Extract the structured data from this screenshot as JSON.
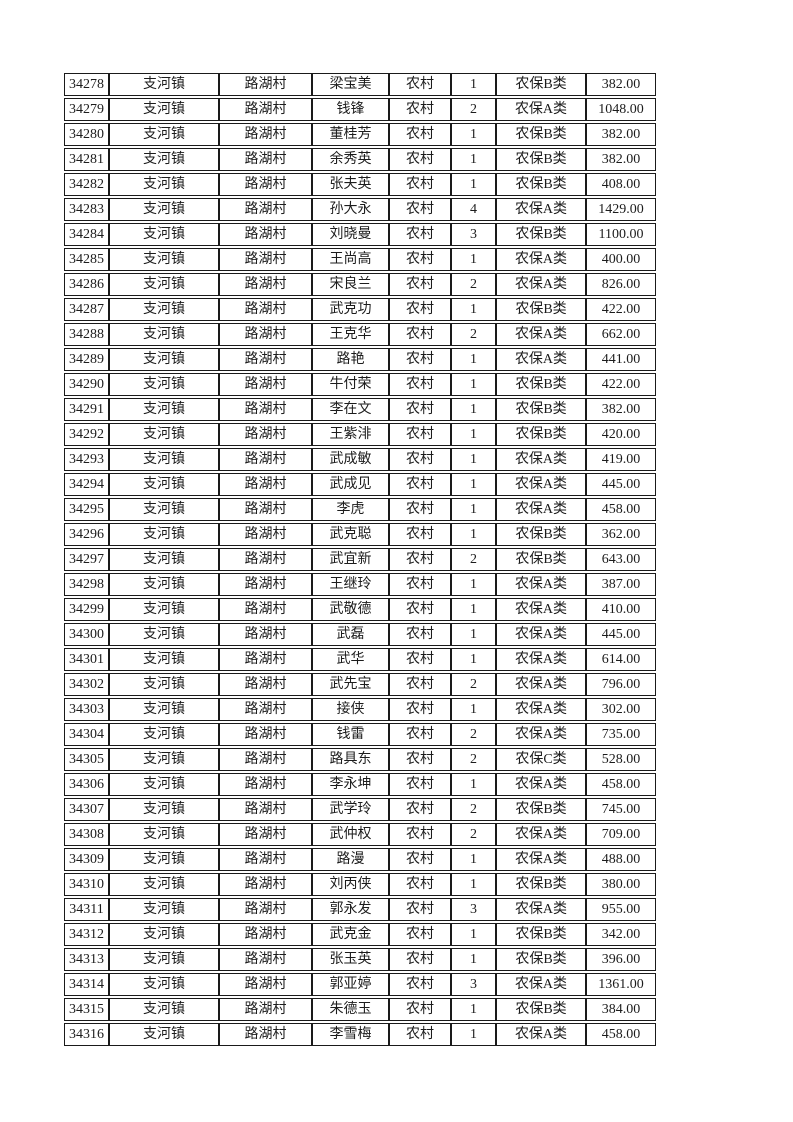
{
  "page": {
    "background": "#ffffff",
    "border_color": "#1a1a1a",
    "text_color": "#1c1c1c"
  },
  "table": {
    "columns": [
      "id",
      "town",
      "village",
      "name",
      "residence",
      "count",
      "insurance_type",
      "amount"
    ],
    "rows": [
      [
        "34278",
        "支河镇",
        "路湖村",
        "梁宝美",
        "农村",
        "1",
        "农保B类",
        "382.00"
      ],
      [
        "34279",
        "支河镇",
        "路湖村",
        "钱锋",
        "农村",
        "2",
        "农保A类",
        "1048.00"
      ],
      [
        "34280",
        "支河镇",
        "路湖村",
        "董桂芳",
        "农村",
        "1",
        "农保B类",
        "382.00"
      ],
      [
        "34281",
        "支河镇",
        "路湖村",
        "余秀英",
        "农村",
        "1",
        "农保B类",
        "382.00"
      ],
      [
        "34282",
        "支河镇",
        "路湖村",
        "张夫英",
        "农村",
        "1",
        "农保B类",
        "408.00"
      ],
      [
        "34283",
        "支河镇",
        "路湖村",
        "孙大永",
        "农村",
        "4",
        "农保A类",
        "1429.00"
      ],
      [
        "34284",
        "支河镇",
        "路湖村",
        "刘晓曼",
        "农村",
        "3",
        "农保B类",
        "1100.00"
      ],
      [
        "34285",
        "支河镇",
        "路湖村",
        "王尚高",
        "农村",
        "1",
        "农保A类",
        "400.00"
      ],
      [
        "34286",
        "支河镇",
        "路湖村",
        "宋良兰",
        "农村",
        "2",
        "农保A类",
        "826.00"
      ],
      [
        "34287",
        "支河镇",
        "路湖村",
        "武克功",
        "农村",
        "1",
        "农保B类",
        "422.00"
      ],
      [
        "34288",
        "支河镇",
        "路湖村",
        "王克华",
        "农村",
        "2",
        "农保A类",
        "662.00"
      ],
      [
        "34289",
        "支河镇",
        "路湖村",
        "路艳",
        "农村",
        "1",
        "农保A类",
        "441.00"
      ],
      [
        "34290",
        "支河镇",
        "路湖村",
        "牛付荣",
        "农村",
        "1",
        "农保B类",
        "422.00"
      ],
      [
        "34291",
        "支河镇",
        "路湖村",
        "李在文",
        "农村",
        "1",
        "农保B类",
        "382.00"
      ],
      [
        "34292",
        "支河镇",
        "路湖村",
        "王紫渄",
        "农村",
        "1",
        "农保B类",
        "420.00"
      ],
      [
        "34293",
        "支河镇",
        "路湖村",
        "武成敏",
        "农村",
        "1",
        "农保A类",
        "419.00"
      ],
      [
        "34294",
        "支河镇",
        "路湖村",
        "武成见",
        "农村",
        "1",
        "农保A类",
        "445.00"
      ],
      [
        "34295",
        "支河镇",
        "路湖村",
        "李虎",
        "农村",
        "1",
        "农保A类",
        "458.00"
      ],
      [
        "34296",
        "支河镇",
        "路湖村",
        "武克聪",
        "农村",
        "1",
        "农保B类",
        "362.00"
      ],
      [
        "34297",
        "支河镇",
        "路湖村",
        "武宜新",
        "农村",
        "2",
        "农保B类",
        "643.00"
      ],
      [
        "34298",
        "支河镇",
        "路湖村",
        "王继玲",
        "农村",
        "1",
        "农保A类",
        "387.00"
      ],
      [
        "34299",
        "支河镇",
        "路湖村",
        "武敬德",
        "农村",
        "1",
        "农保A类",
        "410.00"
      ],
      [
        "34300",
        "支河镇",
        "路湖村",
        "武磊",
        "农村",
        "1",
        "农保A类",
        "445.00"
      ],
      [
        "34301",
        "支河镇",
        "路湖村",
        "武华",
        "农村",
        "1",
        "农保A类",
        "614.00"
      ],
      [
        "34302",
        "支河镇",
        "路湖村",
        "武先宝",
        "农村",
        "2",
        "农保A类",
        "796.00"
      ],
      [
        "34303",
        "支河镇",
        "路湖村",
        "接侠",
        "农村",
        "1",
        "农保A类",
        "302.00"
      ],
      [
        "34304",
        "支河镇",
        "路湖村",
        "钱雷",
        "农村",
        "2",
        "农保A类",
        "735.00"
      ],
      [
        "34305",
        "支河镇",
        "路湖村",
        "路具东",
        "农村",
        "2",
        "农保C类",
        "528.00"
      ],
      [
        "34306",
        "支河镇",
        "路湖村",
        "李永坤",
        "农村",
        "1",
        "农保A类",
        "458.00"
      ],
      [
        "34307",
        "支河镇",
        "路湖村",
        "武学玲",
        "农村",
        "2",
        "农保B类",
        "745.00"
      ],
      [
        "34308",
        "支河镇",
        "路湖村",
        "武仲权",
        "农村",
        "2",
        "农保A类",
        "709.00"
      ],
      [
        "34309",
        "支河镇",
        "路湖村",
        "路漫",
        "农村",
        "1",
        "农保A类",
        "488.00"
      ],
      [
        "34310",
        "支河镇",
        "路湖村",
        "刘丙侠",
        "农村",
        "1",
        "农保B类",
        "380.00"
      ],
      [
        "34311",
        "支河镇",
        "路湖村",
        "郭永发",
        "农村",
        "3",
        "农保A类",
        "955.00"
      ],
      [
        "34312",
        "支河镇",
        "路湖村",
        "武克金",
        "农村",
        "1",
        "农保B类",
        "342.00"
      ],
      [
        "34313",
        "支河镇",
        "路湖村",
        "张玉英",
        "农村",
        "1",
        "农保B类",
        "396.00"
      ],
      [
        "34314",
        "支河镇",
        "路湖村",
        "郭亚婷",
        "农村",
        "3",
        "农保A类",
        "1361.00"
      ],
      [
        "34315",
        "支河镇",
        "路湖村",
        "朱德玉",
        "农村",
        "1",
        "农保B类",
        "384.00"
      ],
      [
        "34316",
        "支河镇",
        "路湖村",
        "李雪梅",
        "农村",
        "1",
        "农保A类",
        "458.00"
      ]
    ]
  }
}
